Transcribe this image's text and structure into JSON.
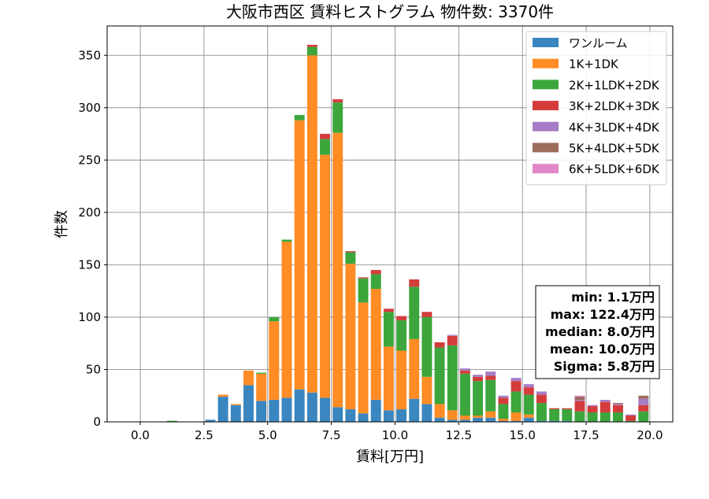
{
  "chart_data": {
    "type": "bar",
    "stacked": true,
    "title": "大阪市西区 賃料ヒストグラム 物件数: 3370件",
    "xlabel": "賃料[万円]",
    "ylabel": "件数",
    "xlim": [
      -1.3,
      20.9
    ],
    "ylim": [
      0,
      378
    ],
    "grid": true,
    "legend_position": "top-right",
    "xticks": [
      "0.0",
      "2.5",
      "5.0",
      "7.5",
      "10.0",
      "12.5",
      "15.0",
      "17.5",
      "20.0"
    ],
    "xtick_values": [
      0,
      2.5,
      5,
      7.5,
      10,
      12.5,
      15,
      17.5,
      20
    ],
    "yticks": [
      "0",
      "50",
      "100",
      "150",
      "200",
      "250",
      "300",
      "350"
    ],
    "ytick_values": [
      0,
      50,
      100,
      150,
      200,
      250,
      300,
      350
    ],
    "bin_width": 0.5,
    "bin_starts": [
      1.0,
      1.5,
      2.0,
      2.5,
      3.0,
      3.5,
      4.0,
      4.5,
      5.0,
      5.5,
      6.0,
      6.5,
      7.0,
      7.5,
      8.0,
      8.5,
      9.0,
      9.5,
      10.0,
      10.5,
      11.0,
      11.5,
      12.0,
      12.5,
      13.0,
      13.5,
      14.0,
      14.5,
      15.0,
      15.5,
      16.0,
      16.5,
      17.0,
      17.5,
      18.0,
      18.5,
      19.0,
      19.5
    ],
    "series": [
      {
        "name": "ワンルーム",
        "color": "#3a86c0",
        "values": [
          0,
          0,
          0,
          2,
          24,
          16,
          35,
          20,
          21,
          23,
          31,
          28,
          23,
          14,
          12,
          8,
          21,
          11,
          12,
          22,
          17,
          4,
          2,
          2,
          4,
          4,
          1,
          1,
          4,
          1,
          1,
          1,
          0,
          0,
          0,
          0,
          0,
          0
        ]
      },
      {
        "name": "1K+1DK",
        "color": "#ff8c24",
        "values": [
          0,
          0,
          0,
          0,
          2,
          1,
          14,
          26,
          75,
          149,
          257,
          322,
          232,
          262,
          139,
          106,
          106,
          61,
          56,
          57,
          26,
          13,
          9,
          4,
          2,
          6,
          2,
          8,
          3,
          0,
          0,
          0,
          0,
          0,
          0,
          0,
          0,
          0
        ]
      },
      {
        "name": "2K+1LDK+2DK",
        "color": "#3ca63c",
        "values": [
          1,
          0,
          0,
          0,
          0,
          0,
          0,
          1,
          4,
          2,
          5,
          8,
          15,
          29,
          11,
          23,
          14,
          33,
          29,
          50,
          57,
          54,
          62,
          40,
          33,
          30,
          14,
          20,
          19,
          17,
          11,
          11,
          10,
          9,
          9,
          9,
          1,
          10
        ]
      },
      {
        "name": "3K+2LDK+3DK",
        "color": "#d43c3c",
        "values": [
          0,
          0,
          0,
          0,
          0,
          0,
          0,
          0,
          0,
          0,
          0,
          2,
          5,
          3,
          1,
          1,
          4,
          3,
          4,
          7,
          5,
          5,
          9,
          3,
          4,
          4,
          6,
          10,
          7,
          8,
          1,
          1,
          10,
          6,
          10,
          7,
          5,
          6
        ]
      },
      {
        "name": "4K+3LDK+4DK",
        "color": "#a67cc6",
        "values": [
          0,
          0,
          0,
          0,
          0,
          0,
          0,
          0,
          0,
          0,
          0,
          0,
          0,
          0,
          0,
          0,
          0,
          0,
          0,
          0,
          0,
          0,
          1,
          2,
          2,
          4,
          2,
          3,
          3,
          3,
          0,
          0,
          1,
          1,
          2,
          1,
          1,
          6
        ]
      },
      {
        "name": "5K+4LDK+5DK",
        "color": "#9c6c5c",
        "values": [
          0,
          0,
          0,
          0,
          0,
          0,
          0,
          0,
          0,
          0,
          0,
          0,
          0,
          0,
          0,
          0,
          0,
          0,
          0,
          0,
          0,
          0,
          0,
          0,
          0,
          0,
          0,
          0,
          0,
          0,
          0,
          0,
          3,
          0,
          0,
          1,
          0,
          3
        ]
      },
      {
        "name": "6K+5LDK+6DK",
        "color": "#e387c8",
        "values": [
          0,
          0,
          0,
          0,
          0,
          0,
          0,
          0,
          0,
          0,
          0,
          0,
          0,
          0,
          0,
          0,
          0,
          0,
          0,
          0,
          0,
          0,
          0,
          0,
          0,
          0,
          0,
          0,
          0,
          0,
          0,
          0,
          1,
          0,
          0,
          0,
          0,
          0
        ]
      }
    ],
    "stats_box": {
      "position": "bottom-right",
      "lines": [
        "min: 1.1万円",
        "max: 122.4万円",
        "median: 8.0万円",
        "mean: 10.0万円",
        "Sigma: 5.8万円"
      ]
    }
  }
}
